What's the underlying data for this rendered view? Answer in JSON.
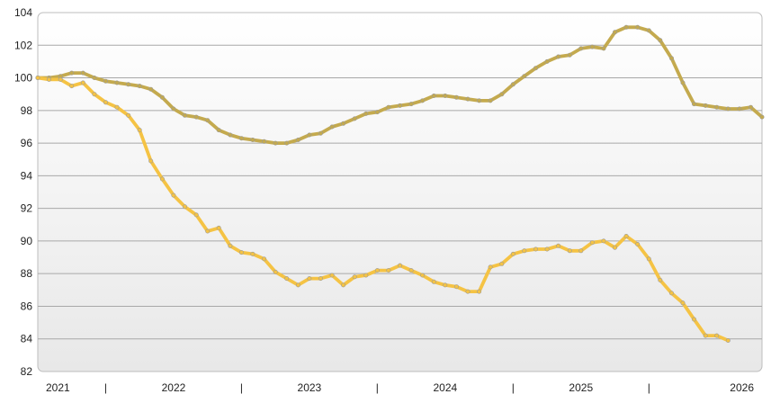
{
  "chart_data": {
    "type": "line",
    "title": "",
    "xlabel": "",
    "ylabel": "",
    "ylim": [
      82,
      104
    ],
    "y_ticks": [
      82,
      84,
      86,
      88,
      90,
      92,
      94,
      96,
      98,
      100,
      102,
      104
    ],
    "x_range": [
      2021.0,
      2026.0
    ],
    "x_tick_labels": [
      {
        "label": "2021",
        "x": 2021.0
      },
      {
        "label": "2022",
        "x": 2022.0
      },
      {
        "label": "2023",
        "x": 2023.0
      },
      {
        "label": "2024",
        "x": 2024.0
      },
      {
        "label": "2025",
        "x": 2025.0
      },
      {
        "label": "2026",
        "x": 2026.0
      }
    ],
    "x_separators": [
      {
        "label": "|",
        "x": 2021.5
      },
      {
        "label": "|",
        "x": 2022.5
      },
      {
        "label": "|",
        "x": 2023.5
      },
      {
        "label": "|",
        "x": 2024.5
      },
      {
        "label": "|",
        "x": 2025.5
      }
    ],
    "grid": true,
    "legend": "none",
    "background_gradient": [
      "#ffffff",
      "#e8e8e8"
    ],
    "series": [
      {
        "color": "#c4aa4e",
        "values": [
          [
            2021.0,
            100.0
          ],
          [
            2021.083,
            100.0
          ],
          [
            2021.167,
            100.1
          ],
          [
            2021.25,
            100.3
          ],
          [
            2021.333,
            100.3
          ],
          [
            2021.417,
            100.0
          ],
          [
            2021.5,
            99.8
          ],
          [
            2021.583,
            99.7
          ],
          [
            2021.667,
            99.6
          ],
          [
            2021.75,
            99.5
          ],
          [
            2021.833,
            99.3
          ],
          [
            2021.917,
            98.8
          ],
          [
            2022.0,
            98.1
          ],
          [
            2022.083,
            97.7
          ],
          [
            2022.167,
            97.6
          ],
          [
            2022.25,
            97.4
          ],
          [
            2022.333,
            96.8
          ],
          [
            2022.417,
            96.5
          ],
          [
            2022.5,
            96.3
          ],
          [
            2022.583,
            96.2
          ],
          [
            2022.667,
            96.1
          ],
          [
            2022.75,
            96.0
          ],
          [
            2022.833,
            96.0
          ],
          [
            2022.917,
            96.2
          ],
          [
            2023.0,
            96.5
          ],
          [
            2023.083,
            96.6
          ],
          [
            2023.167,
            97.0
          ],
          [
            2023.25,
            97.2
          ],
          [
            2023.333,
            97.5
          ],
          [
            2023.417,
            97.8
          ],
          [
            2023.5,
            97.9
          ],
          [
            2023.583,
            98.2
          ],
          [
            2023.667,
            98.3
          ],
          [
            2023.75,
            98.4
          ],
          [
            2023.833,
            98.6
          ],
          [
            2023.917,
            98.9
          ],
          [
            2024.0,
            98.9
          ],
          [
            2024.083,
            98.8
          ],
          [
            2024.167,
            98.7
          ],
          [
            2024.25,
            98.6
          ],
          [
            2024.333,
            98.6
          ],
          [
            2024.417,
            99.0
          ],
          [
            2024.5,
            99.6
          ],
          [
            2024.583,
            100.1
          ],
          [
            2024.667,
            100.6
          ],
          [
            2024.75,
            101.0
          ],
          [
            2024.833,
            101.3
          ],
          [
            2024.917,
            101.4
          ],
          [
            2025.0,
            101.8
          ],
          [
            2025.083,
            101.9
          ],
          [
            2025.167,
            101.8
          ],
          [
            2025.25,
            102.8
          ],
          [
            2025.333,
            103.1
          ],
          [
            2025.417,
            103.1
          ],
          [
            2025.5,
            102.9
          ],
          [
            2025.583,
            102.3
          ],
          [
            2025.667,
            101.2
          ],
          [
            2025.75,
            99.7
          ],
          [
            2025.833,
            98.4
          ],
          [
            2025.917,
            98.3
          ],
          [
            2026.0,
            98.2
          ],
          [
            2026.083,
            98.1
          ],
          [
            2026.167,
            98.1
          ],
          [
            2026.25,
            98.2
          ],
          [
            2026.333,
            97.6
          ]
        ]
      },
      {
        "color": "#f5c344",
        "values": [
          [
            2021.0,
            100.0
          ],
          [
            2021.083,
            99.9
          ],
          [
            2021.167,
            99.9
          ],
          [
            2021.25,
            99.5
          ],
          [
            2021.333,
            99.7
          ],
          [
            2021.417,
            99.0
          ],
          [
            2021.5,
            98.5
          ],
          [
            2021.583,
            98.2
          ],
          [
            2021.667,
            97.7
          ],
          [
            2021.75,
            96.8
          ],
          [
            2021.833,
            94.9
          ],
          [
            2021.917,
            93.8
          ],
          [
            2022.0,
            92.8
          ],
          [
            2022.083,
            92.1
          ],
          [
            2022.167,
            91.6
          ],
          [
            2022.25,
            90.6
          ],
          [
            2022.333,
            90.8
          ],
          [
            2022.417,
            89.7
          ],
          [
            2022.5,
            89.3
          ],
          [
            2022.583,
            89.2
          ],
          [
            2022.667,
            88.9
          ],
          [
            2022.75,
            88.1
          ],
          [
            2022.833,
            87.7
          ],
          [
            2022.917,
            87.3
          ],
          [
            2023.0,
            87.7
          ],
          [
            2023.083,
            87.7
          ],
          [
            2023.167,
            87.9
          ],
          [
            2023.25,
            87.3
          ],
          [
            2023.333,
            87.8
          ],
          [
            2023.417,
            87.9
          ],
          [
            2023.5,
            88.2
          ],
          [
            2023.583,
            88.2
          ],
          [
            2023.667,
            88.5
          ],
          [
            2023.75,
            88.2
          ],
          [
            2023.833,
            87.9
          ],
          [
            2023.917,
            87.5
          ],
          [
            2024.0,
            87.3
          ],
          [
            2024.083,
            87.2
          ],
          [
            2024.167,
            86.9
          ],
          [
            2024.25,
            86.9
          ],
          [
            2024.333,
            88.4
          ],
          [
            2024.417,
            88.6
          ],
          [
            2024.5,
            89.2
          ],
          [
            2024.583,
            89.4
          ],
          [
            2024.667,
            89.5
          ],
          [
            2024.75,
            89.5
          ],
          [
            2024.833,
            89.7
          ],
          [
            2024.917,
            89.4
          ],
          [
            2025.0,
            89.4
          ],
          [
            2025.083,
            89.9
          ],
          [
            2025.167,
            90.0
          ],
          [
            2025.25,
            89.6
          ],
          [
            2025.333,
            90.3
          ],
          [
            2025.417,
            89.8
          ],
          [
            2025.5,
            88.9
          ],
          [
            2025.583,
            87.6
          ],
          [
            2025.667,
            86.8
          ],
          [
            2025.75,
            86.2
          ],
          [
            2025.833,
            85.2
          ],
          [
            2025.917,
            84.2
          ],
          [
            2026.0,
            84.2
          ],
          [
            2026.083,
            83.9
          ]
        ]
      }
    ]
  }
}
